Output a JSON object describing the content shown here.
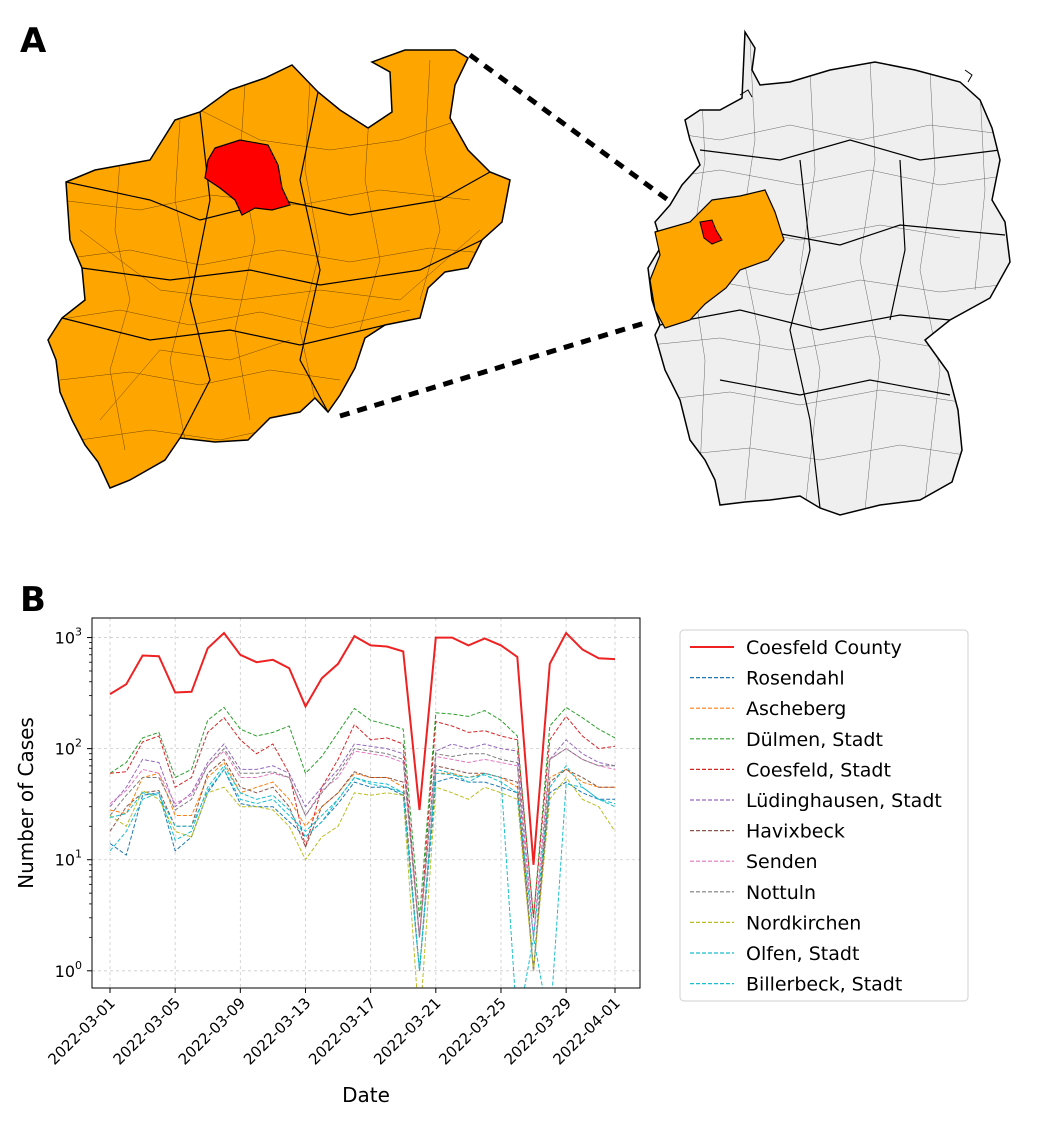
{
  "panels": {
    "a_label": "A",
    "b_label": "B"
  },
  "map": {
    "state_fill": "#ffa500",
    "highlight_fill": "#ff0000",
    "country_fill": "#efefef",
    "border_color": "#000000"
  },
  "chart_data": {
    "type": "line",
    "yscale": "log",
    "ylim": [
      0.7,
      1500
    ],
    "xlabel": "Date",
    "ylabel": "Number of Cases",
    "grid": true,
    "legend_position": "right",
    "x": [
      "2022-03-01",
      "2022-03-02",
      "2022-03-03",
      "2022-03-04",
      "2022-03-05",
      "2022-03-06",
      "2022-03-07",
      "2022-03-08",
      "2022-03-09",
      "2022-03-10",
      "2022-03-11",
      "2022-03-12",
      "2022-03-13",
      "2022-03-14",
      "2022-03-15",
      "2022-03-16",
      "2022-03-17",
      "2022-03-18",
      "2022-03-19",
      "2022-03-20",
      "2022-03-21",
      "2022-03-22",
      "2022-03-23",
      "2022-03-24",
      "2022-03-25",
      "2022-03-26",
      "2022-03-27",
      "2022-03-28",
      "2022-03-29",
      "2022-03-30",
      "2022-03-31",
      "2022-04-01"
    ],
    "xticks": [
      "2022-03-01",
      "2022-03-05",
      "2022-03-09",
      "2022-03-13",
      "2022-03-17",
      "2022-03-21",
      "2022-03-25",
      "2022-03-29",
      "2022-04-01"
    ],
    "yticks": [
      {
        "value": 1,
        "base": "10",
        "exp": "0"
      },
      {
        "value": 10,
        "base": "10",
        "exp": "1"
      },
      {
        "value": 100,
        "base": "10",
        "exp": "2"
      },
      {
        "value": 1000,
        "base": "10",
        "exp": "3"
      }
    ],
    "series": [
      {
        "name": "Coesfeld County",
        "color": "#ee2222",
        "style": "solid",
        "values": [
          310,
          380,
          690,
          680,
          320,
          325,
          800,
          1100,
          700,
          600,
          630,
          530,
          240,
          430,
          580,
          1030,
          850,
          830,
          750,
          28,
          1000,
          1000,
          850,
          980,
          850,
          670,
          9,
          580,
          1100,
          780,
          650,
          640
        ]
      },
      {
        "name": "Rosendahl",
        "color": "#1f77b4",
        "style": "dashed",
        "values": [
          14,
          11,
          38,
          40,
          12,
          16,
          40,
          65,
          32,
          30,
          30,
          22,
          16,
          22,
          32,
          50,
          45,
          45,
          38,
          1,
          50,
          55,
          50,
          50,
          45,
          40,
          1,
          40,
          50,
          40,
          35,
          35
        ]
      },
      {
        "name": "Ascheberg",
        "color": "#ff7f0e",
        "style": "dashed",
        "values": [
          28,
          26,
          55,
          60,
          25,
          25,
          55,
          75,
          40,
          45,
          50,
          35,
          20,
          30,
          40,
          60,
          55,
          55,
          45,
          1,
          60,
          60,
          55,
          60,
          55,
          45,
          1,
          55,
          65,
          50,
          45,
          45
        ]
      },
      {
        "name": "Dülmen, Stadt",
        "color": "#2ca02c",
        "style": "dashed",
        "values": [
          60,
          75,
          125,
          140,
          55,
          65,
          180,
          235,
          150,
          130,
          140,
          160,
          60,
          85,
          140,
          230,
          180,
          165,
          150,
          3,
          210,
          205,
          195,
          220,
          180,
          130,
          3,
          160,
          235,
          190,
          150,
          125
        ]
      },
      {
        "name": "Coesfeld, Stadt",
        "color": "#d62728",
        "style": "dashed",
        "values": [
          60,
          62,
          115,
          130,
          45,
          55,
          140,
          190,
          120,
          90,
          110,
          60,
          13,
          45,
          80,
          165,
          120,
          125,
          110,
          2,
          175,
          160,
          140,
          145,
          130,
          120,
          3,
          120,
          195,
          130,
          100,
          105
        ]
      },
      {
        "name": "Lüdinghausen, Stadt",
        "color": "#9467bd",
        "style": "dashed",
        "values": [
          30,
          45,
          80,
          75,
          30,
          40,
          75,
          110,
          65,
          65,
          70,
          60,
          30,
          45,
          65,
          110,
          105,
          100,
          90,
          2,
          95,
          110,
          100,
          110,
          100,
          95,
          2,
          80,
          120,
          90,
          75,
          70
        ]
      },
      {
        "name": "Havixbeck",
        "color": "#8c564b",
        "style": "dashed",
        "values": [
          18,
          30,
          40,
          42,
          20,
          20,
          60,
          80,
          45,
          40,
          45,
          30,
          13,
          30,
          40,
          62,
          55,
          55,
          50,
          1,
          70,
          65,
          60,
          60,
          55,
          50,
          1,
          50,
          65,
          55,
          45,
          45
        ]
      },
      {
        "name": "Senden",
        "color": "#e377c2",
        "style": "dashed",
        "values": [
          32,
          42,
          65,
          60,
          32,
          38,
          70,
          95,
          55,
          55,
          60,
          55,
          25,
          42,
          55,
          95,
          90,
          85,
          75,
          2,
          85,
          80,
          75,
          80,
          75,
          70,
          2,
          80,
          100,
          80,
          70,
          65
        ]
      },
      {
        "name": "Nottuln",
        "color": "#7f7f7f",
        "style": "dashed",
        "values": [
          25,
          38,
          55,
          55,
          28,
          35,
          70,
          100,
          60,
          60,
          62,
          55,
          25,
          40,
          60,
          100,
          95,
          90,
          80,
          2,
          90,
          85,
          90,
          90,
          80,
          75,
          1,
          80,
          100,
          80,
          70,
          70
        ]
      },
      {
        "name": "Nordkirchen",
        "color": "#bcbd22",
        "style": "dashed",
        "values": [
          25,
          20,
          42,
          35,
          18,
          16,
          40,
          45,
          30,
          30,
          28,
          20,
          10,
          16,
          20,
          40,
          38,
          40,
          38,
          0.001,
          45,
          40,
          35,
          45,
          40,
          35,
          1,
          35,
          55,
          35,
          30,
          18
        ]
      },
      {
        "name": "Olfen, Stadt",
        "color": "#17becf",
        "style": "dashed",
        "values": [
          12,
          18,
          35,
          40,
          15,
          18,
          45,
          70,
          40,
          35,
          38,
          28,
          16,
          22,
          35,
          55,
          50,
          48,
          40,
          1,
          60,
          58,
          55,
          58,
          50,
          40,
          2,
          45,
          70,
          45,
          35,
          32
        ]
      },
      {
        "name": "Billerbeck, Stadt",
        "color": "#17becf",
        "style": "dashed",
        "values": [
          24,
          26,
          40,
          38,
          20,
          20,
          42,
          65,
          35,
          32,
          35,
          25,
          18,
          25,
          35,
          55,
          48,
          45,
          40,
          1,
          65,
          60,
          50,
          60,
          55,
          0.001,
          2,
          0.001,
          48,
          45,
          35,
          30
        ]
      }
    ]
  }
}
